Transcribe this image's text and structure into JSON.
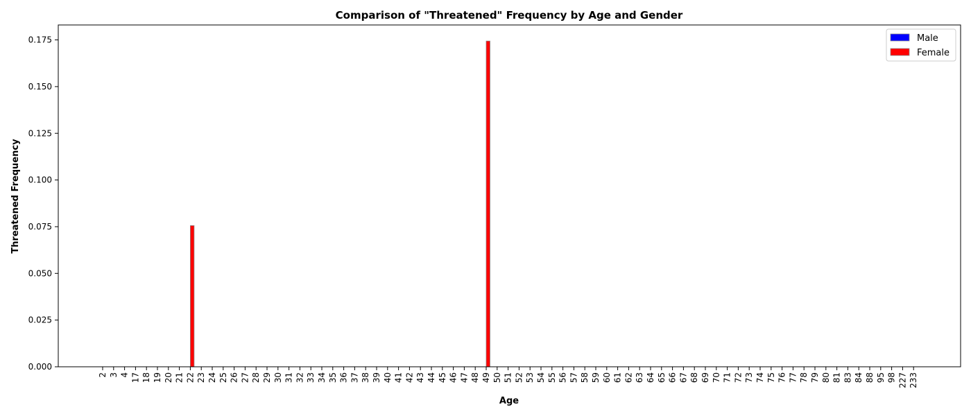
{
  "chart_data": {
    "type": "bar",
    "title": "Comparison of \"Threatened\" Frequency by Age and Gender",
    "xlabel": "Age",
    "ylabel": "Threatened Frequency",
    "ylim": [
      0,
      0.183
    ],
    "yticks": [
      0.0,
      0.025,
      0.05,
      0.075,
      0.1,
      0.125,
      0.15,
      0.175
    ],
    "yticks_format": 3,
    "categories": [
      "2",
      "3",
      "4",
      "17",
      "18",
      "19",
      "20",
      "21",
      "22",
      "23",
      "24",
      "25",
      "26",
      "27",
      "28",
      "29",
      "30",
      "31",
      "32",
      "33",
      "34",
      "35",
      "36",
      "37",
      "38",
      "39",
      "40",
      "41",
      "42",
      "43",
      "44",
      "45",
      "46",
      "47",
      "48",
      "49",
      "50",
      "51",
      "52",
      "53",
      "54",
      "55",
      "56",
      "57",
      "58",
      "59",
      "60",
      "61",
      "62",
      "63",
      "64",
      "65",
      "66",
      "67",
      "68",
      "69",
      "70",
      "71",
      "72",
      "73",
      "74",
      "75",
      "76",
      "77",
      "78",
      "79",
      "80",
      "81",
      "83",
      "84",
      "88",
      "95",
      "98",
      "227",
      "233"
    ],
    "legend_position": "top-right",
    "grid": false,
    "series": [
      {
        "name": "Male",
        "color": "#0000ff",
        "values": [
          0,
          0,
          0,
          0,
          0,
          0,
          0,
          0,
          0,
          0,
          0,
          0,
          0,
          0,
          0,
          0,
          0,
          0,
          0,
          0,
          0,
          0,
          0,
          0,
          0,
          0,
          0,
          0,
          0,
          0,
          0,
          0,
          0,
          0,
          0,
          0,
          0,
          0,
          0,
          0,
          0,
          0,
          0,
          0,
          0,
          0,
          0,
          0,
          0,
          0,
          0,
          0,
          0,
          0,
          0,
          0,
          0,
          0,
          0,
          0,
          0,
          0,
          0,
          0,
          0,
          0,
          0,
          0,
          0,
          0,
          0,
          0,
          0,
          0,
          0
        ]
      },
      {
        "name": "Female",
        "color": "#ff0000",
        "values": [
          0,
          0,
          0,
          0,
          0,
          0,
          0,
          0,
          0.0756,
          0,
          0,
          0,
          0,
          0,
          0,
          0,
          0,
          0,
          0,
          0,
          0,
          0,
          0,
          0,
          0,
          0,
          0,
          0,
          0,
          0,
          0,
          0,
          0,
          0,
          0,
          0.1744,
          0,
          0,
          0,
          0,
          0,
          0,
          0,
          0,
          0,
          0,
          0,
          0,
          0,
          0,
          0,
          0,
          0,
          0,
          0,
          0,
          0,
          0,
          0,
          0,
          0,
          0,
          0,
          0,
          0,
          0,
          0,
          0,
          0,
          0,
          0,
          0,
          0,
          0,
          0
        ]
      }
    ]
  }
}
